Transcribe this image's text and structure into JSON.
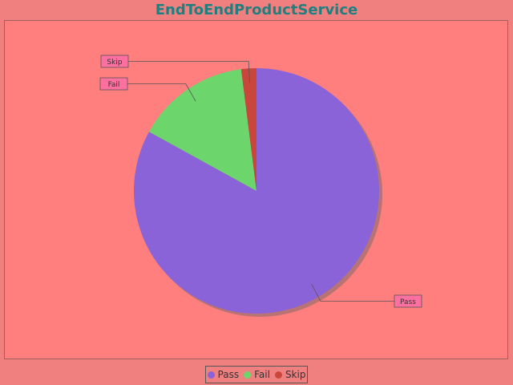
{
  "chart_data": {
    "type": "pie",
    "title": "EndToEndProductService",
    "categories": [
      "Pass",
      "Fail",
      "Skip"
    ],
    "values": [
      83,
      15,
      2
    ],
    "colors": [
      "#8b63d8",
      "#6cd66c",
      "#c9463d"
    ],
    "legend_position": "bottom-center",
    "slice_labels": [
      "Pass",
      "Fail",
      "Skip"
    ]
  },
  "colors": {
    "background": "#f08080",
    "plot_background": "#ff7f7f",
    "title": "#1f7f7f",
    "label_box": "#ff6fa0"
  }
}
